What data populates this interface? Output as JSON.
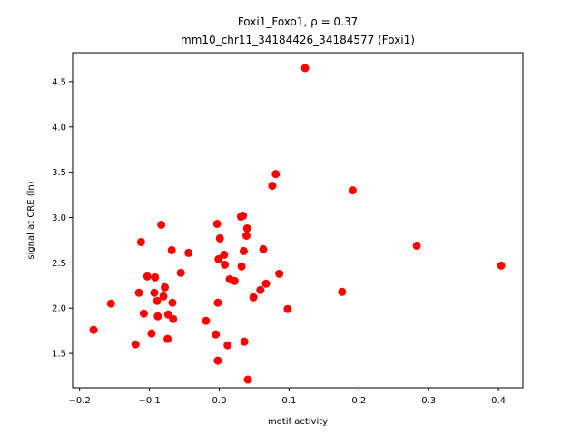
{
  "chart_data": {
    "type": "scatter",
    "title_line1": "Foxi1_Foxo1, ρ = 0.37",
    "title_line2": "mm10_chr11_34184426_34184577 (Foxi1)",
    "xlabel": "motif activity",
    "ylabel": "signal at CRE (ln)",
    "xlim": [
      -0.21,
      0.435
    ],
    "ylim": [
      1.12,
      4.82
    ],
    "xticks": [
      -0.2,
      -0.1,
      0.0,
      0.1,
      0.2,
      0.3,
      0.4
    ],
    "xtick_labels": [
      "−0.2",
      "−0.1",
      "0.0",
      "0.1",
      "0.2",
      "0.3",
      "0.4"
    ],
    "yticks": [
      1.5,
      2.0,
      2.5,
      3.0,
      3.5,
      4.0,
      4.5
    ],
    "ytick_labels": [
      "1.5",
      "2.0",
      "2.5",
      "3.0",
      "3.5",
      "4.0",
      "4.5"
    ],
    "grid": false,
    "marker_color": "#ff0000",
    "points": [
      {
        "x": -0.18,
        "y": 1.76
      },
      {
        "x": -0.155,
        "y": 2.05
      },
      {
        "x": -0.12,
        "y": 1.6
      },
      {
        "x": -0.115,
        "y": 2.17
      },
      {
        "x": -0.112,
        "y": 2.73
      },
      {
        "x": -0.108,
        "y": 1.94
      },
      {
        "x": -0.103,
        "y": 2.35
      },
      {
        "x": -0.097,
        "y": 1.72
      },
      {
        "x": -0.093,
        "y": 2.17
      },
      {
        "x": -0.092,
        "y": 2.34
      },
      {
        "x": -0.089,
        "y": 2.08
      },
      {
        "x": -0.088,
        "y": 1.91
      },
      {
        "x": -0.083,
        "y": 2.92
      },
      {
        "x": -0.08,
        "y": 2.13
      },
      {
        "x": -0.078,
        "y": 2.23
      },
      {
        "x": -0.074,
        "y": 1.66
      },
      {
        "x": -0.073,
        "y": 1.93
      },
      {
        "x": -0.068,
        "y": 2.64
      },
      {
        "x": -0.067,
        "y": 2.06
      },
      {
        "x": -0.066,
        "y": 1.88
      },
      {
        "x": -0.055,
        "y": 2.39
      },
      {
        "x": -0.044,
        "y": 2.61
      },
      {
        "x": -0.019,
        "y": 1.86
      },
      {
        "x": -0.005,
        "y": 1.71
      },
      {
        "x": -0.003,
        "y": 2.93
      },
      {
        "x": -0.002,
        "y": 2.06
      },
      {
        "x": -0.002,
        "y": 1.42
      },
      {
        "x": -0.001,
        "y": 2.54
      },
      {
        "x": 0.001,
        "y": 2.77
      },
      {
        "x": 0.007,
        "y": 2.59
      },
      {
        "x": 0.008,
        "y": 2.48
      },
      {
        "x": 0.012,
        "y": 1.59
      },
      {
        "x": 0.015,
        "y": 2.32
      },
      {
        "x": 0.022,
        "y": 2.3
      },
      {
        "x": 0.031,
        "y": 3.01
      },
      {
        "x": 0.032,
        "y": 2.46
      },
      {
        "x": 0.034,
        "y": 3.02
      },
      {
        "x": 0.035,
        "y": 2.63
      },
      {
        "x": 0.036,
        "y": 1.63
      },
      {
        "x": 0.039,
        "y": 2.8
      },
      {
        "x": 0.04,
        "y": 2.88
      },
      {
        "x": 0.041,
        "y": 1.21
      },
      {
        "x": 0.049,
        "y": 2.12
      },
      {
        "x": 0.059,
        "y": 2.2
      },
      {
        "x": 0.063,
        "y": 2.65
      },
      {
        "x": 0.067,
        "y": 2.27
      },
      {
        "x": 0.076,
        "y": 3.35
      },
      {
        "x": 0.081,
        "y": 3.48
      },
      {
        "x": 0.086,
        "y": 2.38
      },
      {
        "x": 0.098,
        "y": 1.99
      },
      {
        "x": 0.123,
        "y": 4.65
      },
      {
        "x": 0.176,
        "y": 2.18
      },
      {
        "x": 0.191,
        "y": 3.3
      },
      {
        "x": 0.283,
        "y": 2.69
      },
      {
        "x": 0.404,
        "y": 2.47
      }
    ]
  }
}
